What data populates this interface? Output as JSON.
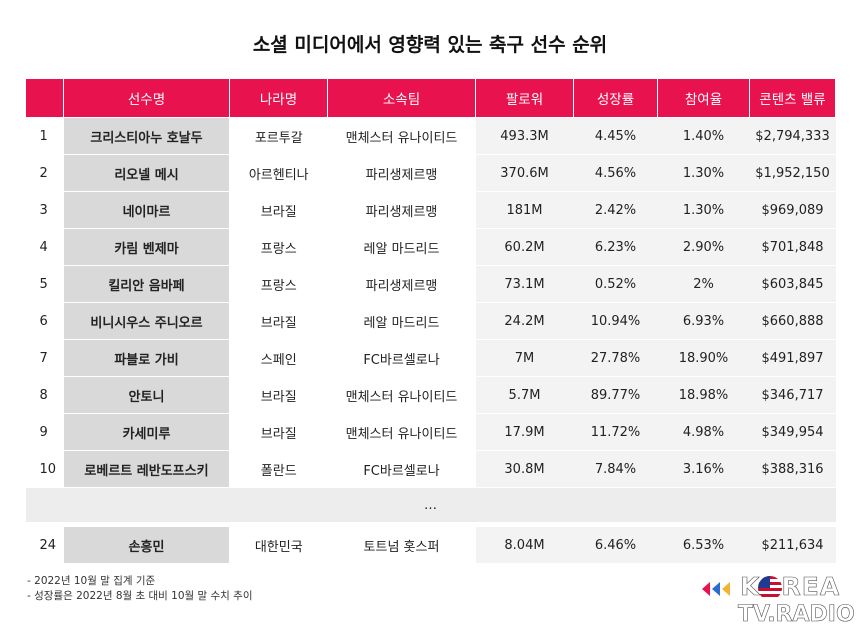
{
  "title": "소셜 미디어에서 영향력 있는 축구 선수 순위",
  "headers": [
    "",
    "선수명",
    "나라명",
    "소속팀",
    "팔로워",
    "성장률",
    "참여율",
    "콘텐츠 밸류"
  ],
  "rows": [
    {
      "rank": "1",
      "name": "크리스티아누 호날두",
      "country": "포르투갈",
      "team": "맨체스터 유나이티드",
      "followers": "493.3M",
      "growth": "4.45%",
      "engagement": "1.40%",
      "value": "$2,794,333"
    },
    {
      "rank": "2",
      "name": "리오넬 메시",
      "country": "아르헨티나",
      "team": "파리생제르맹",
      "followers": "370.6M",
      "growth": "4.56%",
      "engagement": "1.30%",
      "value": "$1,952,150"
    },
    {
      "rank": "3",
      "name": "네이마르",
      "country": "브라질",
      "team": "파리생제르맹",
      "followers": "181M",
      "growth": "2.42%",
      "engagement": "1.30%",
      "value": "$969,089"
    },
    {
      "rank": "4",
      "name": "카림 벤제마",
      "country": "프랑스",
      "team": "레알 마드리드",
      "followers": "60.2M",
      "growth": "6.23%",
      "engagement": "2.90%",
      "value": "$701,848"
    },
    {
      "rank": "5",
      "name": "킬리안 음바페",
      "country": "프랑스",
      "team": "파리생제르맹",
      "followers": "73.1M",
      "growth": "0.52%",
      "engagement": "2%",
      "value": "$603,845"
    },
    {
      "rank": "6",
      "name": "비니시우스 주니오르",
      "country": "브라질",
      "team": "레알 마드리드",
      "followers": "24.2M",
      "growth": "10.94%",
      "engagement": "6.93%",
      "value": "$660,888"
    },
    {
      "rank": "7",
      "name": "파블로 가비",
      "country": "스페인",
      "team": "FC바르셀로나",
      "followers": "7M",
      "growth": "27.78%",
      "engagement": "18.90%",
      "value": "$491,897"
    },
    {
      "rank": "8",
      "name": "안토니",
      "country": "브라질",
      "team": "맨체스터 유나이티드",
      "followers": "5.7M",
      "growth": "89.77%",
      "engagement": "18.98%",
      "value": "$346,717"
    },
    {
      "rank": "9",
      "name": "카세미루",
      "country": "브라질",
      "team": "맨체스터 유나이티드",
      "followers": "17.9M",
      "growth": "11.72%",
      "engagement": "4.98%",
      "value": "$349,954"
    },
    {
      "rank": "10",
      "name": "로베르트 레반도프스키",
      "country": "폴란드",
      "team": "FC바르셀로나",
      "followers": "30.8M",
      "growth": "7.84%",
      "engagement": "3.16%",
      "value": "$388,316"
    }
  ],
  "ellipsis": "…",
  "last_row": {
    "rank": "24",
    "name": "손흥민",
    "country": "대한민국",
    "team": "토트넘 홋스퍼",
    "followers": "8.04M",
    "growth": "6.46%",
    "engagement": "6.53%",
    "value": "$211,634"
  },
  "notes": [
    "2022년 10월 말 집계 기준",
    "성장률은 2022년 8월 초 대비 10월 말 수치 추이"
  ],
  "logo": {
    "line1": "KOREA",
    "line2": "TV.RADIO"
  },
  "colors": {
    "header": "#e8124f",
    "name_cell": "#d9d9d9",
    "data_cell": "#f3f3f3"
  }
}
